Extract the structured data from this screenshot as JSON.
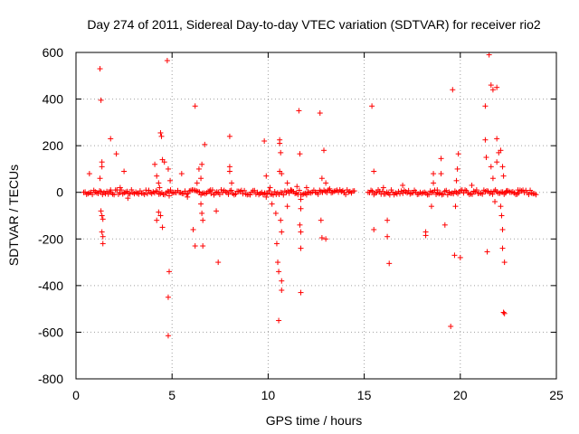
{
  "chart_data": {
    "type": "scatter",
    "title": "Day 274 of 2011, Sidereal Day-to-day VTEC variation (SDTVAR) for receiver rio2",
    "xlabel": "GPS time / hours",
    "ylabel": "SDTVAR / TECUs",
    "xlim": [
      0,
      25
    ],
    "ylim": [
      -800,
      600
    ],
    "xticks": [
      0,
      5,
      10,
      15,
      20,
      25
    ],
    "yticks": [
      -800,
      -600,
      -400,
      -200,
      0,
      200,
      400,
      600
    ],
    "grid": true,
    "marker": "+",
    "color": "#ff0000",
    "series": [
      {
        "name": "SDTVAR",
        "note": "dense band of points near 0 TECU from 0.4-14.5 h and 15.2-24 h, plus scattered outliers",
        "dense_segments": [
          [
            0.4,
            14.5
          ],
          [
            15.2,
            24.0
          ]
        ],
        "points": [
          [
            0.7,
            80
          ],
          [
            1.25,
            530
          ],
          [
            1.3,
            395
          ],
          [
            1.35,
            130
          ],
          [
            1.35,
            110
          ],
          [
            1.3,
            -80
          ],
          [
            1.35,
            -100
          ],
          [
            1.4,
            -115
          ],
          [
            1.35,
            -170
          ],
          [
            1.4,
            -190
          ],
          [
            1.4,
            -220
          ],
          [
            1.25,
            60
          ],
          [
            1.8,
            230
          ],
          [
            1.8,
            10
          ],
          [
            2.1,
            165
          ],
          [
            2.5,
            90
          ],
          [
            2.7,
            -25
          ],
          [
            2.3,
            20
          ],
          [
            4.1,
            120
          ],
          [
            4.2,
            70
          ],
          [
            4.3,
            40
          ],
          [
            4.35,
            20
          ],
          [
            4.4,
            255
          ],
          [
            4.45,
            240
          ],
          [
            4.5,
            140
          ],
          [
            4.3,
            -85
          ],
          [
            4.4,
            -100
          ],
          [
            4.5,
            -150
          ],
          [
            4.2,
            -120
          ],
          [
            4.6,
            130
          ],
          [
            4.75,
            565
          ],
          [
            4.8,
            100
          ],
          [
            4.9,
            50
          ],
          [
            4.85,
            -15
          ],
          [
            4.85,
            -340
          ],
          [
            4.8,
            -450
          ],
          [
            4.8,
            -615
          ],
          [
            5.5,
            80
          ],
          [
            5.8,
            -20
          ],
          [
            6.1,
            -160
          ],
          [
            6.2,
            370
          ],
          [
            6.2,
            -230
          ],
          [
            6.4,
            100
          ],
          [
            6.5,
            60
          ],
          [
            6.55,
            120
          ],
          [
            6.5,
            -50
          ],
          [
            6.55,
            -90
          ],
          [
            6.6,
            -120
          ],
          [
            6.6,
            -230
          ],
          [
            6.7,
            205
          ],
          [
            6.3,
            40
          ],
          [
            7.0,
            10
          ],
          [
            7.3,
            -80
          ],
          [
            7.4,
            -300
          ],
          [
            8.0,
            240
          ],
          [
            8.0,
            110
          ],
          [
            8.0,
            90
          ],
          [
            8.1,
            40
          ],
          [
            9.8,
            220
          ],
          [
            9.9,
            70
          ],
          [
            9.9,
            -20
          ],
          [
            10.1,
            20
          ],
          [
            10.2,
            -50
          ],
          [
            10.4,
            -90
          ],
          [
            10.45,
            -220
          ],
          [
            10.5,
            -300
          ],
          [
            10.55,
            -340
          ],
          [
            10.55,
            -550
          ],
          [
            10.6,
            225
          ],
          [
            10.6,
            210
          ],
          [
            10.65,
            170
          ],
          [
            10.6,
            90
          ],
          [
            10.7,
            80
          ],
          [
            10.65,
            -120
          ],
          [
            10.7,
            -170
          ],
          [
            10.7,
            -380
          ],
          [
            10.7,
            -420
          ],
          [
            11.0,
            40
          ],
          [
            11.0,
            -60
          ],
          [
            11.2,
            10
          ],
          [
            11.5,
            25
          ],
          [
            11.6,
            350
          ],
          [
            11.65,
            165
          ],
          [
            11.7,
            -30
          ],
          [
            11.7,
            -70
          ],
          [
            11.65,
            -140
          ],
          [
            11.7,
            -170
          ],
          [
            11.7,
            -240
          ],
          [
            11.7,
            -430
          ],
          [
            12.0,
            20
          ],
          [
            12.7,
            340
          ],
          [
            12.8,
            60
          ],
          [
            12.75,
            -120
          ],
          [
            12.8,
            -195
          ],
          [
            12.9,
            180
          ],
          [
            13.0,
            40
          ],
          [
            13.0,
            -200
          ],
          [
            13.2,
            15
          ],
          [
            15.4,
            370
          ],
          [
            15.5,
            90
          ],
          [
            15.5,
            -160
          ],
          [
            16.0,
            20
          ],
          [
            16.2,
            -120
          ],
          [
            16.2,
            -190
          ],
          [
            16.3,
            -305
          ],
          [
            17.0,
            30
          ],
          [
            18.2,
            -170
          ],
          [
            18.2,
            -185
          ],
          [
            18.5,
            -60
          ],
          [
            18.6,
            80
          ],
          [
            18.6,
            40
          ],
          [
            18.8,
            10
          ],
          [
            19.0,
            145
          ],
          [
            19.0,
            80
          ],
          [
            19.2,
            -140
          ],
          [
            19.5,
            -575
          ],
          [
            19.6,
            440
          ],
          [
            19.7,
            -270
          ],
          [
            19.75,
            -60
          ],
          [
            19.8,
            50
          ],
          [
            19.85,
            100
          ],
          [
            19.9,
            165
          ],
          [
            20.0,
            -280
          ],
          [
            20.6,
            30
          ],
          [
            21.3,
            370
          ],
          [
            21.3,
            225
          ],
          [
            21.35,
            150
          ],
          [
            21.4,
            -255
          ],
          [
            21.5,
            590
          ],
          [
            21.6,
            460
          ],
          [
            21.7,
            440
          ],
          [
            21.6,
            110
          ],
          [
            21.7,
            60
          ],
          [
            21.8,
            -40
          ],
          [
            21.9,
            450
          ],
          [
            21.9,
            230
          ],
          [
            21.9,
            130
          ],
          [
            22.0,
            170
          ],
          [
            22.1,
            180
          ],
          [
            22.1,
            -60
          ],
          [
            22.15,
            -100
          ],
          [
            22.2,
            -160
          ],
          [
            22.2,
            -240
          ],
          [
            22.2,
            110
          ],
          [
            22.25,
            70
          ],
          [
            22.25,
            -515
          ],
          [
            22.3,
            -300
          ],
          [
            22.3,
            -520
          ],
          [
            22.4,
            5
          ],
          [
            23.0,
            10
          ]
        ]
      }
    ]
  }
}
